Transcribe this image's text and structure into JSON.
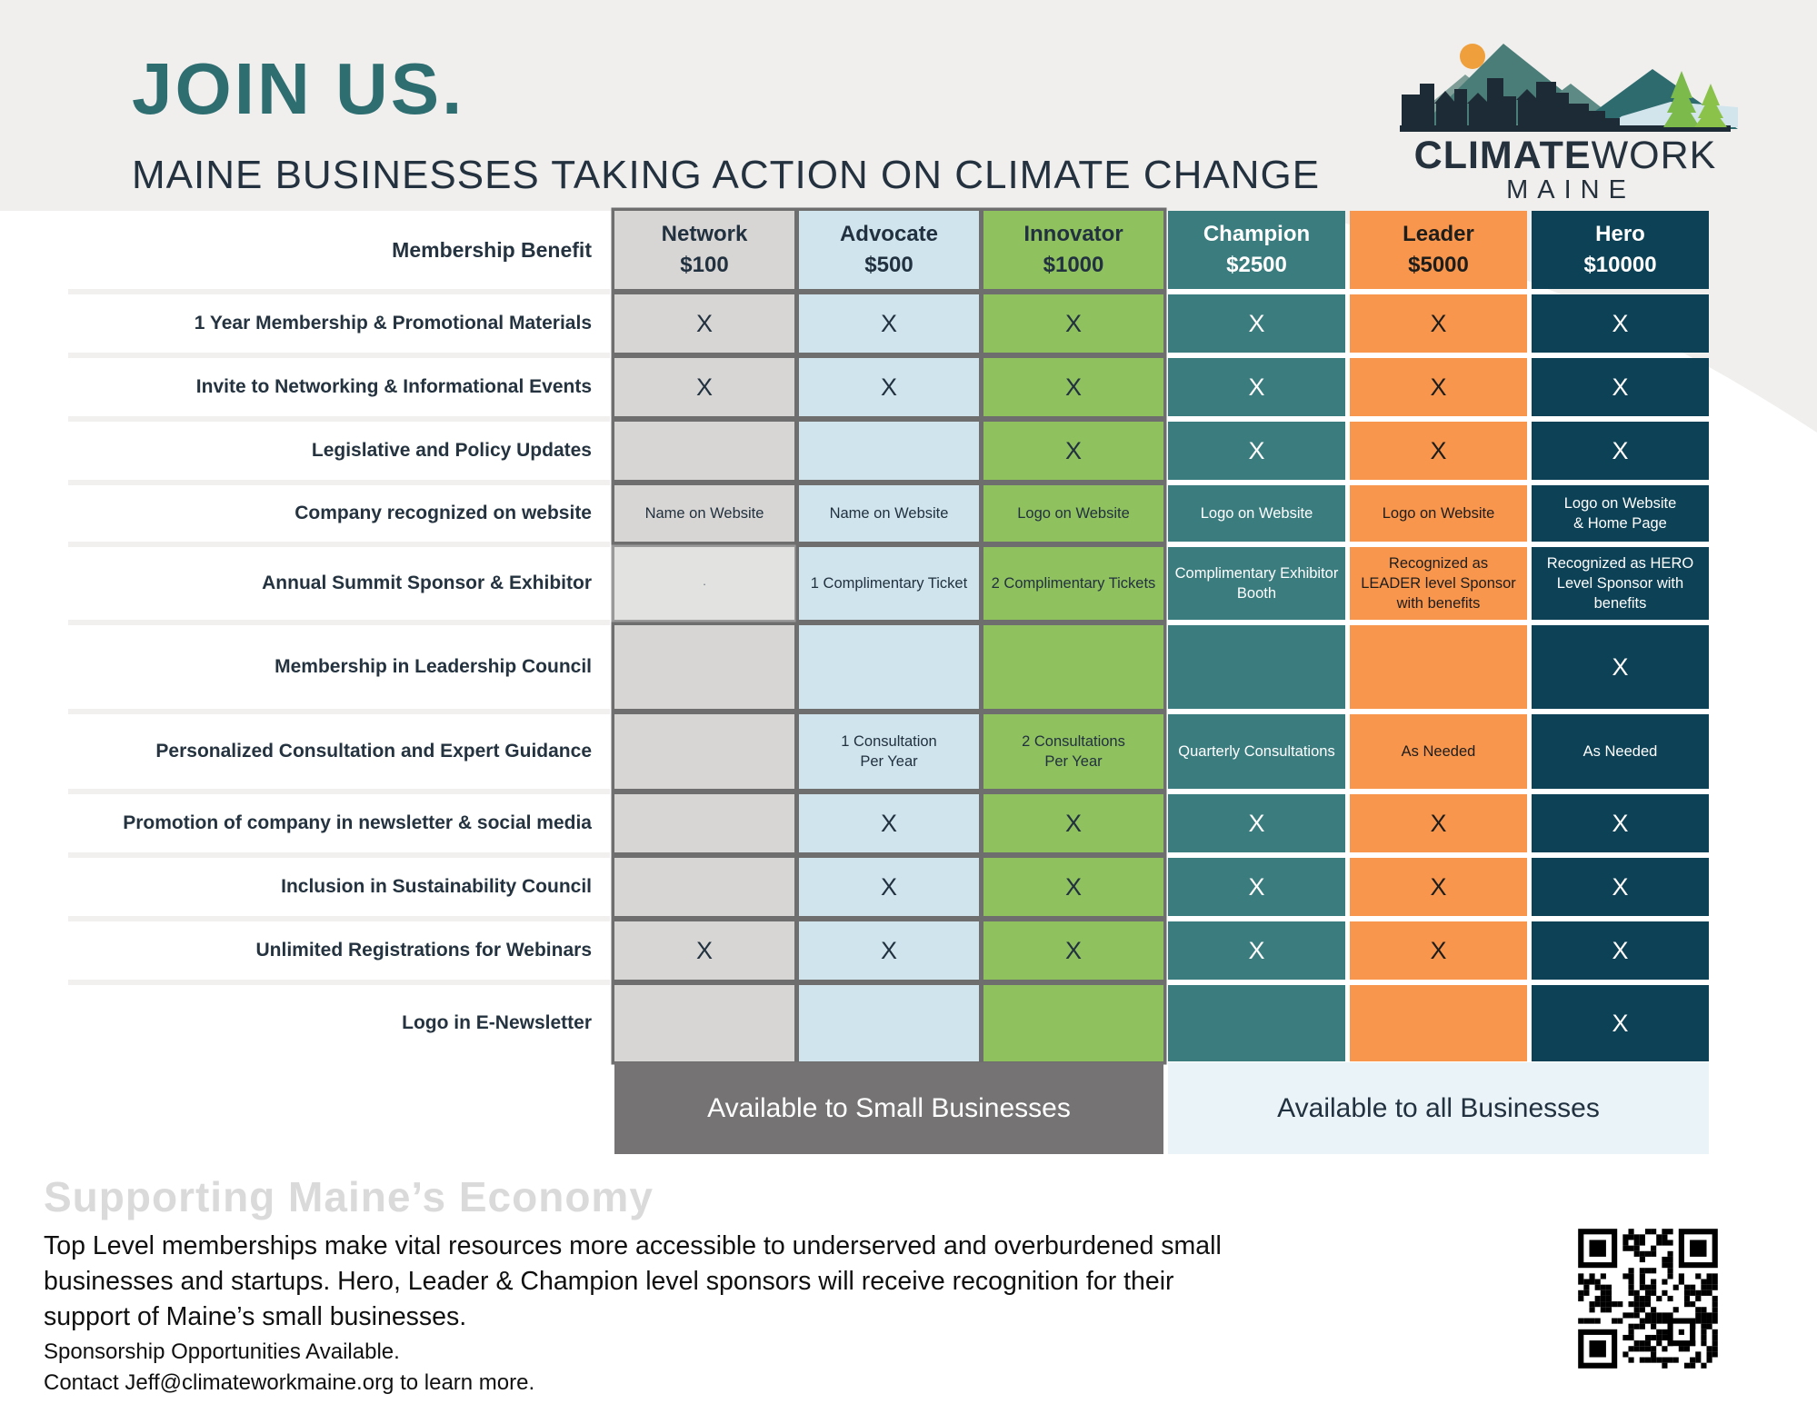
{
  "header": {
    "title": "JOIN US.",
    "subtitle": "MAINE BUSINESSES TAKING ACTION ON CLIMATE CHANGE"
  },
  "logo": {
    "name_bold": "CLIMATE",
    "name_regular": "WORK",
    "name_line2": "MAINE"
  },
  "table": {
    "benefit_header": "Membership Benefit",
    "tiers": [
      {
        "name": "Network",
        "price": "$100",
        "bg": "#d7d6d4",
        "text": "#22313f",
        "header_text": "#22313f",
        "group": "small"
      },
      {
        "name": "Advocate",
        "price": "$500",
        "bg": "#cfe4ed",
        "text": "#22313f",
        "header_text": "#22313f",
        "group": "small"
      },
      {
        "name": "Innovator",
        "price": "$1000",
        "bg": "#8fc15f",
        "text": "#22313f",
        "header_text": "#22313f",
        "group": "small"
      },
      {
        "name": "Champion",
        "price": "$2500",
        "bg": "#3b7c7f",
        "text": "#ffffff",
        "header_text": "#ffffff",
        "group": "all"
      },
      {
        "name": "Leader",
        "price": "$5000",
        "bg": "#f9964e",
        "text": "#1d1d1b",
        "header_text": "#1d1d1b",
        "group": "all"
      },
      {
        "name": "Hero",
        "price": "$10000",
        "bg": "#0c4156",
        "text": "#ffffff",
        "header_text": "#ffffff",
        "group": "all"
      }
    ],
    "rows": [
      {
        "benefit": "1 Year Membership & Promotional Materials",
        "cells": [
          "X",
          "X",
          "X",
          "X",
          "X",
          "X"
        ]
      },
      {
        "benefit": "Invite to Networking & Informational Events",
        "cells": [
          "X",
          "X",
          "X",
          "X",
          "X",
          "X"
        ]
      },
      {
        "benefit": "Legislative and Policy Updates",
        "cells": [
          "",
          "",
          "X",
          "X",
          "X",
          "X"
        ]
      },
      {
        "benefit": "Company recognized on website",
        "cells": [
          "Name on Website",
          "Name on Website",
          "Logo on Website",
          "Logo on  Website",
          "Logo on  Website",
          "Logo on  Website\n& Home Page"
        ]
      },
      {
        "benefit": "Annual Summit Sponsor & Exhibitor",
        "cells": [
          "·",
          "1 Complimentary Ticket",
          "2 Complimentary Tickets",
          "Complimentary Exhibitor\nBooth",
          "Recognized as\nLEADER level Sponsor\nwith benefits",
          "Recognized as HERO\nLevel Sponsor with\nbenefits"
        ]
      },
      {
        "benefit": "Membership in Leadership Council",
        "cells": [
          "",
          "",
          "",
          "",
          "",
          "X"
        ]
      },
      {
        "benefit": "Personalized Consultation and Expert Guidance",
        "cells": [
          "",
          "1 Consultation\nPer Year",
          "2 Consultations\nPer Year",
          "Quarterly Consultations",
          "As Needed",
          "As Needed"
        ]
      },
      {
        "benefit": "Promotion of company in newsletter & social media",
        "cells": [
          "",
          "X",
          "X",
          "X",
          "X",
          "X"
        ]
      },
      {
        "benefit": "Inclusion in Sustainability Council",
        "cells": [
          "",
          "X",
          "X",
          "X",
          "X",
          "X"
        ]
      },
      {
        "benefit": "Unlimited Registrations for Webinars",
        "cells": [
          "X",
          "X",
          "X",
          "X",
          "X",
          "X"
        ]
      },
      {
        "benefit": "Logo in E-Newsletter",
        "cells": [
          "",
          "",
          "",
          "",
          "",
          "X"
        ]
      }
    ],
    "footers": [
      {
        "label": "Available to Small Businesses"
      },
      {
        "label": "Available to all Businesses"
      }
    ]
  },
  "bottom": {
    "heading": "Supporting Maine’s Economy",
    "paragraph": "Top Level memberships make vital resources more accessible to underserved and overburdened small businesses and startups.  Hero, Leader & Champion level sponsors will receive recognition for their support of Maine’s small businesses.",
    "line1": "Sponsorship Opportunities Available.",
    "line2": "Contact Jeff@climateworkmaine.org  to learn more."
  },
  "colors": {
    "accent_teal": "#2e6d70",
    "band_gray": "#f0efee",
    "border_gray": "#6e6e6e",
    "footer_gray": "#757374",
    "footer_blue": "#eaf3f8",
    "dark_text": "#22313f"
  }
}
